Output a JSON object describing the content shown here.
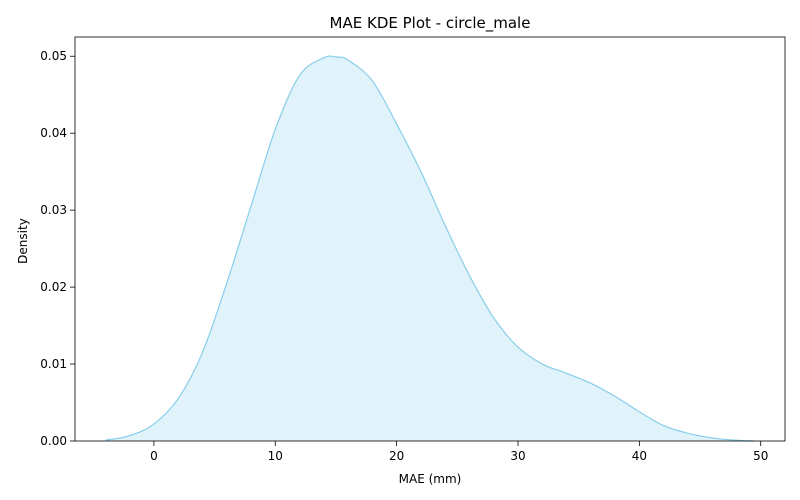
{
  "chart_data": {
    "type": "area",
    "title": "MAE KDE Plot - circle_male",
    "xlabel": "MAE (mm)",
    "ylabel": "Density",
    "xlim": [
      -6.5,
      52
    ],
    "ylim": [
      0,
      0.0525
    ],
    "xticks": [
      0,
      10,
      20,
      30,
      40,
      50
    ],
    "yticks": [
      0.0,
      0.01,
      0.02,
      0.03,
      0.04,
      0.05
    ],
    "ytick_labels": [
      "0.00",
      "0.01",
      "0.02",
      "0.03",
      "0.04",
      "0.05"
    ],
    "grid": false,
    "legend": "none",
    "line_color": "#87ceeb",
    "fill_color": "#87ceeb",
    "fill_opacity": 0.25,
    "series": [
      {
        "x": [
          -4,
          -2,
          0,
          2,
          4,
          6,
          8,
          10,
          12,
          14,
          15,
          16,
          18,
          20,
          22,
          24,
          26,
          28,
          30,
          32,
          34,
          36,
          38,
          40,
          42,
          44,
          46,
          48,
          49.5
        ],
        "y": [
          0.0001,
          0.0007,
          0.0022,
          0.0055,
          0.0115,
          0.0205,
          0.0305,
          0.0405,
          0.0475,
          0.0498,
          0.0499,
          0.0495,
          0.0468,
          0.0412,
          0.035,
          0.028,
          0.0215,
          0.016,
          0.0122,
          0.01,
          0.0088,
          0.0075,
          0.0058,
          0.0038,
          0.002,
          0.001,
          0.0004,
          0.0001,
          0.0
        ]
      }
    ]
  }
}
